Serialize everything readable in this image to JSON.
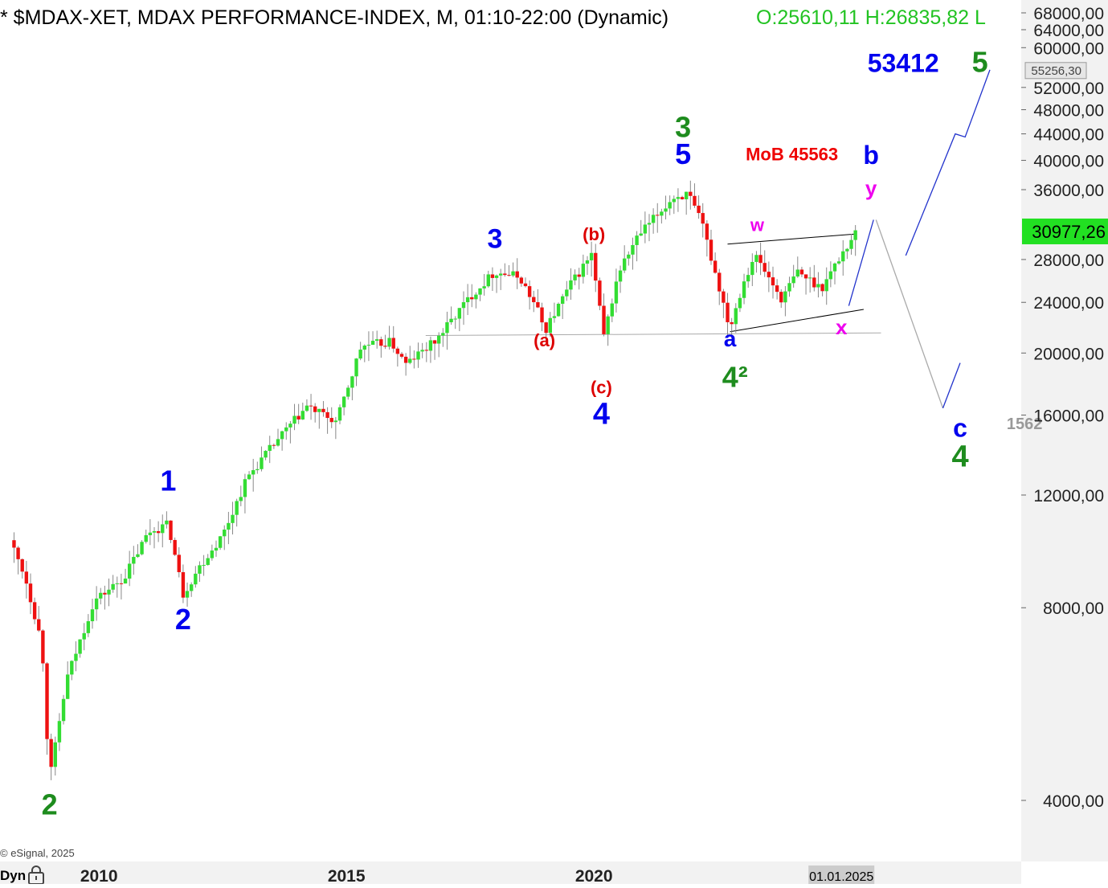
{
  "header": {
    "symbol_title": "* $MDAX-XET, MDAX PERFORMANCE-INDEX, M, 01:10-22:00 (Dynamic)",
    "ohlc_text": "O:25610,11 H:26835,82 L",
    "ohlc_color": "#22c322"
  },
  "copyright": "© eSignal, 2025",
  "dyn_label": "Dyn",
  "chart_data": {
    "type": "candlestick",
    "scale": "log",
    "ylim": [
      3700,
      72000
    ],
    "y_ticks": [
      {
        "value": 68000,
        "label": "68000,00"
      },
      {
        "value": 64000,
        "label": "64000,00"
      },
      {
        "value": 60000,
        "label": "60000,00"
      },
      {
        "value": 52000,
        "label": "52000,00"
      },
      {
        "value": 48000,
        "label": "48000,00"
      },
      {
        "value": 44000,
        "label": "44000,00"
      },
      {
        "value": 40000,
        "label": "40000,00"
      },
      {
        "value": 36000,
        "label": "36000,00"
      },
      {
        "value": 28000,
        "label": "28000,00"
      },
      {
        "value": 24000,
        "label": "24000,00"
      },
      {
        "value": 20000,
        "label": "20000,00"
      },
      {
        "value": 16000,
        "label": "16000,00"
      },
      {
        "value": 12000,
        "label": "12000,00"
      },
      {
        "value": 8000,
        "label": "8000,00"
      },
      {
        "value": 4000,
        "label": "4000,00"
      }
    ],
    "x_ticks": [
      {
        "value": 2010,
        "label": "2010"
      },
      {
        "value": 2015,
        "label": "2015"
      },
      {
        "value": 2020,
        "label": "2020"
      }
    ],
    "x_marker": {
      "value": 2025.0,
      "label": "01.01.2025"
    },
    "price_badges": [
      {
        "value": 30977.26,
        "label": "30977,26",
        "bg": "#22e022",
        "fg": "#000000",
        "style": "last"
      },
      {
        "value": 55256.3,
        "label": "55256,30",
        "bg": "#e6e6e6",
        "fg": "#444444",
        "style": "box"
      }
    ],
    "anchors": [
      {
        "t": 2008.2,
        "v": 10200
      },
      {
        "t": 2008.5,
        "v": 9000
      },
      {
        "t": 2008.85,
        "v": 7000
      },
      {
        "t": 2009.0,
        "v": 4300
      },
      {
        "t": 2009.35,
        "v": 6200
      },
      {
        "t": 2009.9,
        "v": 8200
      },
      {
        "t": 2010.5,
        "v": 8900
      },
      {
        "t": 2011.0,
        "v": 10500
      },
      {
        "t": 2011.4,
        "v": 10800
      },
      {
        "t": 2011.7,
        "v": 8400
      },
      {
        "t": 2012.0,
        "v": 9200
      },
      {
        "t": 2012.5,
        "v": 10400
      },
      {
        "t": 2013.0,
        "v": 12800
      },
      {
        "t": 2013.6,
        "v": 14600
      },
      {
        "t": 2014.2,
        "v": 16500
      },
      {
        "t": 2014.8,
        "v": 15600
      },
      {
        "t": 2015.3,
        "v": 20500
      },
      {
        "t": 2015.9,
        "v": 20800
      },
      {
        "t": 2016.2,
        "v": 19200
      },
      {
        "t": 2016.8,
        "v": 20900
      },
      {
        "t": 2017.5,
        "v": 24500
      },
      {
        "t": 2018.0,
        "v": 26800
      },
      {
        "t": 2018.5,
        "v": 26300
      },
      {
        "t": 2018.9,
        "v": 23000
      },
      {
        "t": 2019.0,
        "v": 21600
      },
      {
        "t": 2019.5,
        "v": 25400
      },
      {
        "t": 2019.95,
        "v": 28500
      },
      {
        "t": 2020.2,
        "v": 21200
      },
      {
        "t": 2020.5,
        "v": 26800
      },
      {
        "t": 2020.9,
        "v": 30500
      },
      {
        "t": 2021.6,
        "v": 35000
      },
      {
        "t": 2021.9,
        "v": 35400
      },
      {
        "t": 2022.2,
        "v": 31500
      },
      {
        "t": 2022.75,
        "v": 21900
      },
      {
        "t": 2023.0,
        "v": 25600
      },
      {
        "t": 2023.25,
        "v": 28500
      },
      {
        "t": 2023.8,
        "v": 24200
      },
      {
        "t": 2024.1,
        "v": 26800
      },
      {
        "t": 2024.6,
        "v": 25300
      },
      {
        "t": 2025.0,
        "v": 28500
      },
      {
        "t": 2025.3,
        "v": 30977
      }
    ],
    "labels": [
      {
        "text": "2",
        "t": 2009.0,
        "v": 3800,
        "color": "#1e8c1e",
        "size": 36
      },
      {
        "text": "1",
        "t": 2011.4,
        "v": 12200,
        "color": "#0000ee",
        "size": 36
      },
      {
        "text": "2",
        "t": 2011.7,
        "v": 7400,
        "color": "#0000ee",
        "size": 36
      },
      {
        "text": "3",
        "t": 2018.0,
        "v": 29200,
        "color": "#0000ee",
        "size": 34
      },
      {
        "text": "(a)",
        "t": 2019.0,
        "v": 20500,
        "color": "#dd0000",
        "size": 22
      },
      {
        "text": "(b)",
        "t": 2020.0,
        "v": 30000,
        "color": "#dd0000",
        "size": 22
      },
      {
        "text": "(c)",
        "t": 2020.15,
        "v": 17300,
        "color": "#dd0000",
        "size": 22
      },
      {
        "text": "4",
        "t": 2020.15,
        "v": 15500,
        "color": "#0000ee",
        "size": 38
      },
      {
        "text": "3",
        "t": 2021.8,
        "v": 43500,
        "color": "#1e8c1e",
        "size": 36
      },
      {
        "text": "5",
        "t": 2021.8,
        "v": 39500,
        "color": "#0000ee",
        "size": 36
      },
      {
        "text": "MoB 45563",
        "t": 2024.0,
        "v": 40000,
        "color": "#ee0000",
        "size": 22
      },
      {
        "text": "w",
        "t": 2023.3,
        "v": 31000,
        "color": "#ee00ee",
        "size": 22
      },
      {
        "text": "a",
        "t": 2022.75,
        "v": 20500,
        "color": "#0000ee",
        "size": 28
      },
      {
        "text": "4²",
        "t": 2022.85,
        "v": 17700,
        "color": "#1e8c1e",
        "size": 36
      },
      {
        "text": "x",
        "t": 2025.0,
        "v": 21400,
        "color": "#ee00ee",
        "size": 26
      },
      {
        "text": "b",
        "t": 2025.6,
        "v": 39500,
        "color": "#0000ee",
        "size": 32
      },
      {
        "text": "y",
        "t": 2025.6,
        "v": 35300,
        "color": "#ee00ee",
        "size": 26
      },
      {
        "text": "53412",
        "t": 2026.25,
        "v": 55000,
        "color": "#0000ee",
        "size": 32
      },
      {
        "text": "5",
        "t": 2027.8,
        "v": 55000,
        "color": "#1e8c1e",
        "size": 36
      },
      {
        "text": "c",
        "t": 2027.4,
        "v": 14800,
        "color": "#0000ee",
        "size": 32
      },
      {
        "text": "4",
        "t": 2027.4,
        "v": 13300,
        "color": "#1e8c1e",
        "size": 38
      },
      {
        "text": "1562",
        "t": 2028.7,
        "v": 15200,
        "color": "#999999",
        "size": 20
      }
    ],
    "lines": [
      {
        "points": [
          {
            "t": 2016.6,
            "v": 21300
          },
          {
            "t": 2025.8,
            "v": 21500
          }
        ],
        "color": "#aaaaaa",
        "width": 1
      },
      {
        "points": [
          {
            "t": 2022.7,
            "v": 29600
          },
          {
            "t": 2025.3,
            "v": 30700
          }
        ],
        "color": "#000000",
        "width": 1
      },
      {
        "points": [
          {
            "t": 2022.75,
            "v": 21600
          },
          {
            "t": 2025.45,
            "v": 23400
          }
        ],
        "color": "#000000",
        "width": 1
      },
      {
        "points": [
          {
            "t": 2025.15,
            "v": 23700
          },
          {
            "t": 2025.65,
            "v": 32300
          }
        ],
        "color": "#2233cc",
        "width": 1.3
      },
      {
        "points": [
          {
            "t": 2025.7,
            "v": 32300
          },
          {
            "t": 2027.05,
            "v": 16400
          }
        ],
        "color": "#aaaaaa",
        "width": 1.3
      },
      {
        "points": [
          {
            "t": 2027.05,
            "v": 16400
          },
          {
            "t": 2027.4,
            "v": 19300
          }
        ],
        "color": "#2233cc",
        "width": 1.3
      },
      {
        "points": [
          {
            "t": 2026.3,
            "v": 28400
          },
          {
            "t": 2027.3,
            "v": 44000
          },
          {
            "t": 2027.5,
            "v": 43500
          },
          {
            "t": 2028.0,
            "v": 55400
          }
        ],
        "color": "#2233cc",
        "width": 1.3
      }
    ]
  }
}
